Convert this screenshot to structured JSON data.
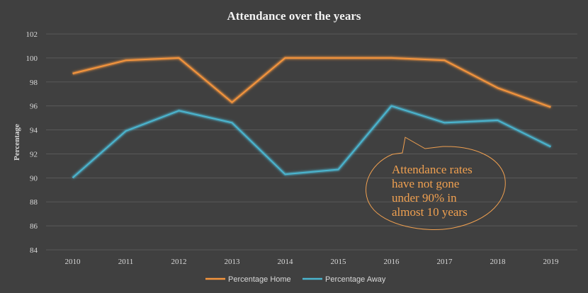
{
  "chart_data": {
    "type": "line",
    "title": "Attendance over the years",
    "xlabel": "",
    "ylabel": "Percentage",
    "categories": [
      "2010",
      "2011",
      "2012",
      "2013",
      "2014",
      "2015",
      "2016",
      "2017",
      "2018",
      "2019"
    ],
    "ylim": [
      84,
      102
    ],
    "yticks": [
      84,
      86,
      88,
      90,
      92,
      94,
      96,
      98,
      100,
      102
    ],
    "grid": true,
    "legend_position": "bottom",
    "series": [
      {
        "name": "Percentage Home",
        "color": "#f5953d",
        "values": [
          98.7,
          99.8,
          100,
          96.3,
          100,
          100,
          100,
          99.8,
          97.5,
          95.9
        ]
      },
      {
        "name": "Percentage Away",
        "color": "#4bb5cf",
        "values": [
          90.0,
          93.9,
          95.6,
          94.6,
          90.3,
          90.7,
          96.0,
          94.6,
          94.8,
          92.6
        ]
      }
    ],
    "annotation": {
      "lines": [
        "Attendance rates",
        "have not gone",
        "under 90% in",
        "almost 10 years"
      ],
      "color": "#f0a050"
    }
  }
}
